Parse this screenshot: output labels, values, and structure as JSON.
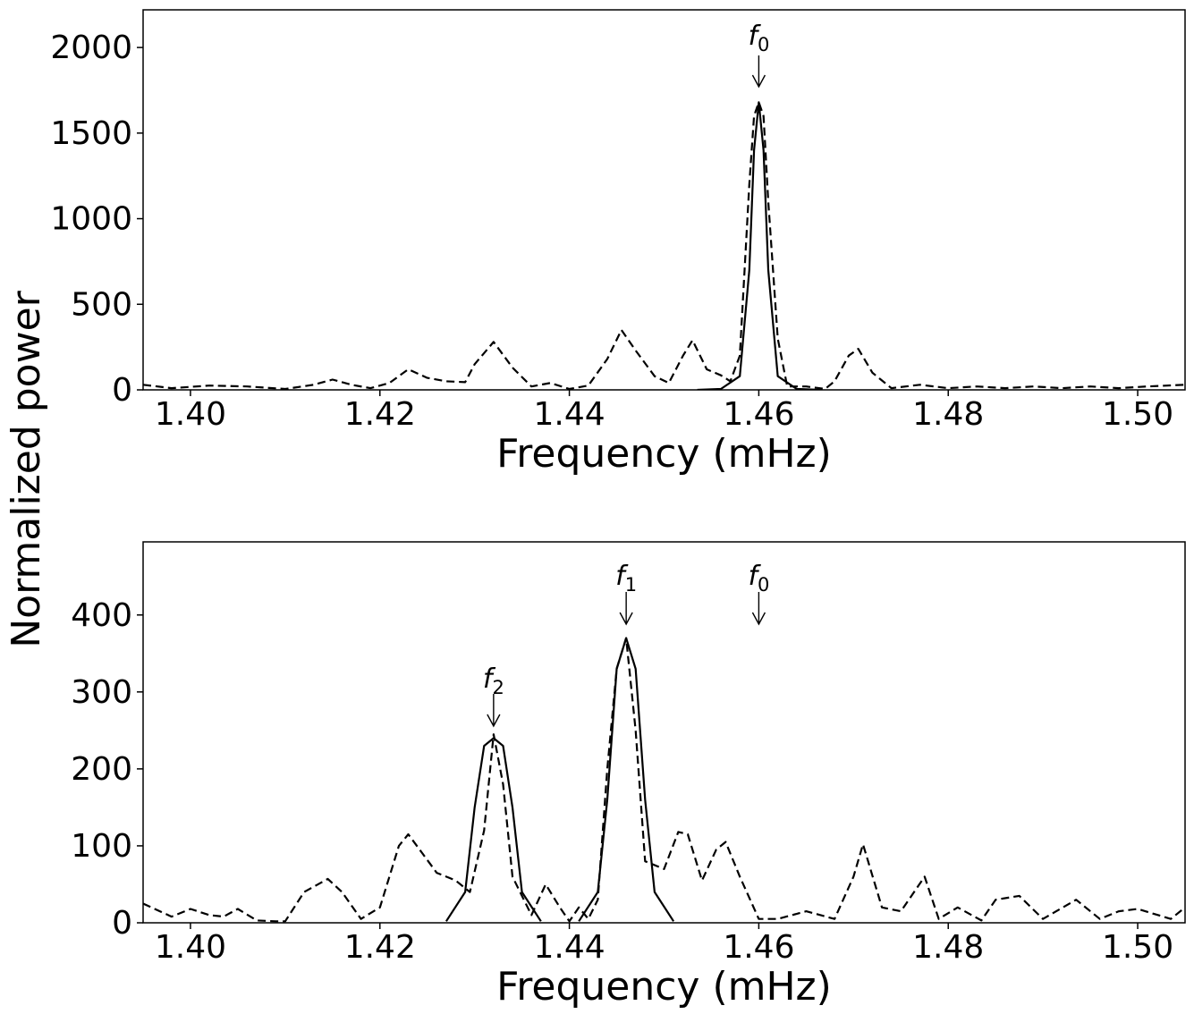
{
  "figure": {
    "ylabel": "Normalized power"
  },
  "chart_data": [
    {
      "type": "line",
      "xlabel": "Frequency (mHz)",
      "ylabel": "Normalized power",
      "xlim": [
        1.395,
        1.505
      ],
      "ylim": [
        0,
        2220
      ],
      "xticks": [
        "1.40",
        "1.42",
        "1.44",
        "1.46",
        "1.48",
        "1.50"
      ],
      "yticks": [
        "0",
        "500",
        "1000",
        "1500",
        "2000"
      ],
      "markers": [
        {
          "label": "f",
          "sub": "0",
          "x": 1.46
        }
      ],
      "series": [
        {
          "style": "dashed",
          "x": [
            1.395,
            1.398,
            1.402,
            1.406,
            1.41,
            1.413,
            1.415,
            1.417,
            1.419,
            1.421,
            1.423,
            1.425,
            1.427,
            1.429,
            1.43,
            1.432,
            1.434,
            1.436,
            1.438,
            1.44,
            1.442,
            1.444,
            1.4455,
            1.447,
            1.449,
            1.4505,
            1.452,
            1.453,
            1.4545,
            1.456,
            1.457,
            1.458,
            1.459,
            1.4595,
            1.46,
            1.4605,
            1.461,
            1.462,
            1.463,
            1.465,
            1.467,
            1.468,
            1.4695,
            1.4705,
            1.472,
            1.474,
            1.477,
            1.48,
            1.483,
            1.486,
            1.489,
            1.492,
            1.495,
            1.498,
            1.501,
            1.505
          ],
          "y": [
            30,
            10,
            25,
            20,
            5,
            30,
            60,
            30,
            10,
            40,
            120,
            70,
            50,
            45,
            150,
            280,
            130,
            20,
            40,
            5,
            25,
            180,
            350,
            230,
            80,
            40,
            200,
            290,
            120,
            85,
            50,
            200,
            1200,
            1600,
            1680,
            1600,
            1100,
            300,
            20,
            20,
            5,
            50,
            200,
            240,
            100,
            10,
            30,
            10,
            20,
            10,
            20,
            10,
            20,
            10,
            20,
            30
          ]
        },
        {
          "style": "solid",
          "x": [
            1.4535,
            1.456,
            1.458,
            1.459,
            1.4595,
            1.46,
            1.4605,
            1.461,
            1.462,
            1.464,
            1.4665
          ],
          "y": [
            0,
            5,
            80,
            700,
            1400,
            1680,
            1400,
            700,
            80,
            5,
            0
          ]
        }
      ]
    },
    {
      "type": "line",
      "xlabel": "Frequency (mHz)",
      "ylabel": "Normalized power",
      "xlim": [
        1.395,
        1.505
      ],
      "ylim": [
        0,
        495
      ],
      "xticks": [
        "1.40",
        "1.42",
        "1.44",
        "1.46",
        "1.48",
        "1.50"
      ],
      "yticks": [
        "0",
        "100",
        "200",
        "300",
        "400"
      ],
      "markers": [
        {
          "label": "f",
          "sub": "2",
          "x": 1.432
        },
        {
          "label": "f",
          "sub": "1",
          "x": 1.446
        },
        {
          "label": "f",
          "sub": "0",
          "x": 1.46
        }
      ],
      "series": [
        {
          "style": "dashed",
          "x": [
            1.395,
            1.398,
            1.4,
            1.402,
            1.4035,
            1.405,
            1.407,
            1.409,
            1.41,
            1.412,
            1.4145,
            1.416,
            1.418,
            1.42,
            1.422,
            1.423,
            1.4245,
            1.426,
            1.428,
            1.4295,
            1.431,
            1.432,
            1.433,
            1.434,
            1.436,
            1.4375,
            1.439,
            1.44,
            1.441,
            1.442,
            1.443,
            1.444,
            1.445,
            1.446,
            1.447,
            1.448,
            1.45,
            1.4515,
            1.4525,
            1.454,
            1.4555,
            1.4565,
            1.458,
            1.46,
            1.462,
            1.465,
            1.468,
            1.47,
            1.471,
            1.473,
            1.475,
            1.4775,
            1.479,
            1.481,
            1.4835,
            1.485,
            1.4875,
            1.49,
            1.4935,
            1.496,
            1.498,
            1.5,
            1.5035,
            1.505
          ],
          "y": [
            25,
            8,
            18,
            10,
            8,
            18,
            3,
            2,
            2,
            40,
            57,
            40,
            5,
            20,
            100,
            115,
            90,
            65,
            55,
            40,
            120,
            245,
            180,
            60,
            10,
            50,
            20,
            2,
            20,
            5,
            30,
            200,
            330,
            370,
            250,
            80,
            70,
            118,
            115,
            55,
            95,
            105,
            60,
            5,
            5,
            15,
            5,
            60,
            102,
            20,
            15,
            60,
            5,
            20,
            3,
            30,
            35,
            5,
            30,
            5,
            15,
            18,
            5,
            20
          ]
        },
        {
          "style": "solid",
          "x": [
            1.427,
            1.429,
            1.43,
            1.431,
            1.432,
            1.433,
            1.434,
            1.435,
            1.437
          ],
          "y": [
            2,
            40,
            150,
            230,
            240,
            230,
            150,
            40,
            2
          ]
        },
        {
          "style": "solid",
          "x": [
            1.441,
            1.443,
            1.444,
            1.445,
            1.446,
            1.447,
            1.448,
            1.449,
            1.451
          ],
          "y": [
            2,
            40,
            160,
            330,
            370,
            330,
            160,
            40,
            2
          ]
        }
      ]
    }
  ]
}
